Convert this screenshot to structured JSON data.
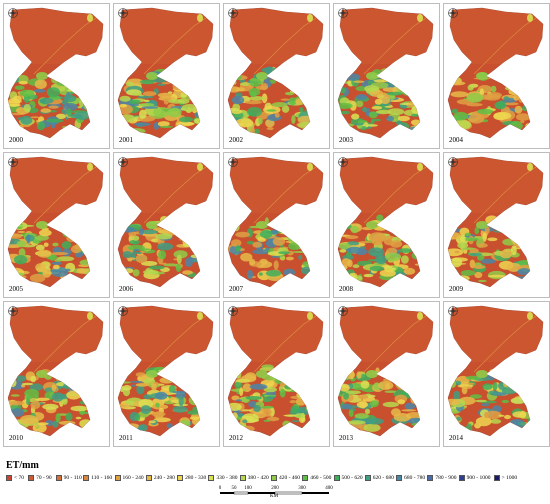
{
  "panels": [
    {
      "year": "2000",
      "green": 0.55
    },
    {
      "year": "2001",
      "green": 0.45
    },
    {
      "year": "2002",
      "green": 0.5
    },
    {
      "year": "2003",
      "green": 0.65
    },
    {
      "year": "2004",
      "green": 0.3
    },
    {
      "year": "2005",
      "green": 0.35
    },
    {
      "year": "2006",
      "green": 0.3
    },
    {
      "year": "2007",
      "green": 0.45
    },
    {
      "year": "2008",
      "green": 0.55
    },
    {
      "year": "2009",
      "green": 0.35
    },
    {
      "year": "2010",
      "green": 0.4
    },
    {
      "year": "2011",
      "green": 0.45
    },
    {
      "year": "2012",
      "green": 0.55
    },
    {
      "year": "2013",
      "green": 0.45
    },
    {
      "year": "2014",
      "green": 0.4
    }
  ],
  "legend": {
    "title": "ET/mm",
    "classes": [
      {
        "label": "< 70",
        "color": "#c8452f"
      },
      {
        "label": "70 - 90",
        "color": "#cc5a33"
      },
      {
        "label": "90 - 110",
        "color": "#d37038"
      },
      {
        "label": "110 - 160",
        "color": "#d9873e"
      },
      {
        "label": "160 - 240",
        "color": "#e0a043"
      },
      {
        "label": "240 - 280",
        "color": "#e6ba49"
      },
      {
        "label": "280 - 330",
        "color": "#edd64f"
      },
      {
        "label": "330 - 380",
        "color": "#d9e253"
      },
      {
        "label": "380 - 420",
        "color": "#b6d84e"
      },
      {
        "label": "420 - 460",
        "color": "#8fcb48"
      },
      {
        "label": "460 - 500",
        "color": "#5fbf45"
      },
      {
        "label": "500 - 620",
        "color": "#3fae5c"
      },
      {
        "label": "620 - 680",
        "color": "#3f9e83"
      },
      {
        "label": "680 - 780",
        "color": "#4a86a6"
      },
      {
        "label": "780 - 900",
        "color": "#4a6aa8"
      },
      {
        "label": "900 - 1000",
        "color": "#2f3f8f"
      },
      {
        "label": "> 1000",
        "color": "#1a1a66"
      }
    ],
    "scale": {
      "ticks": [
        "0",
        "50",
        "100",
        "200",
        "300",
        "400"
      ],
      "unit": "KM"
    }
  }
}
